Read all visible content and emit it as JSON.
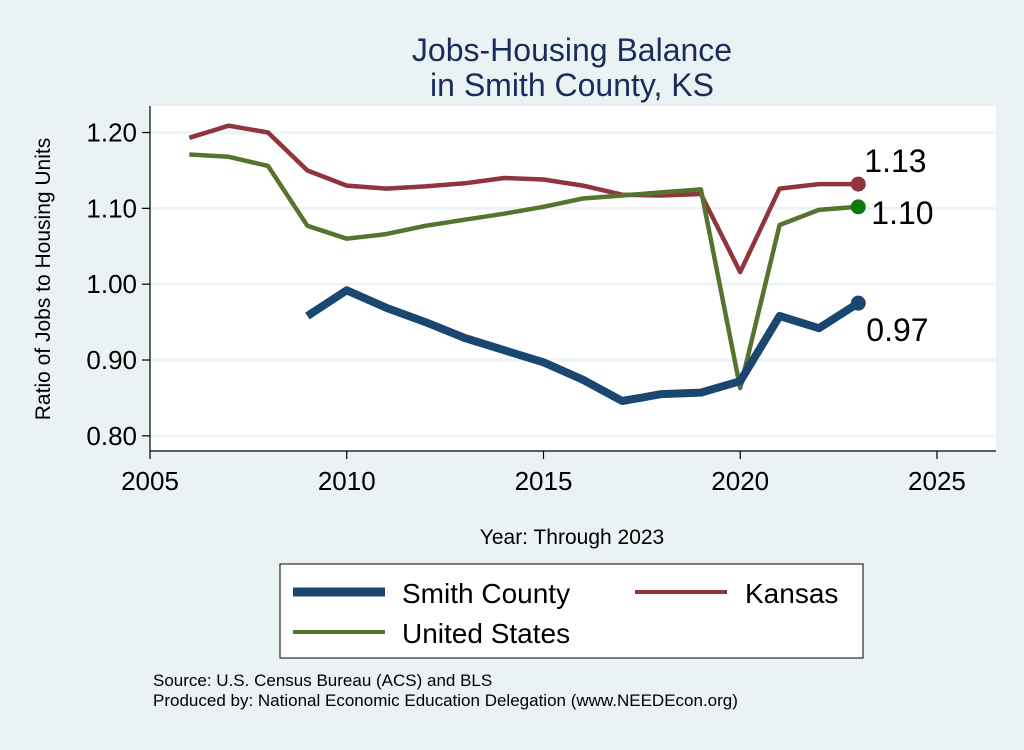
{
  "chart_data": {
    "type": "line",
    "title": [
      "Jobs-Housing Balance",
      "in Smith County, KS"
    ],
    "xlabel": "Year: Through 2023",
    "ylabel": "Ratio of Jobs to Housing Units",
    "xlim": [
      2005,
      2026.5
    ],
    "ylim": [
      0.78,
      1.235
    ],
    "xticks": [
      2005,
      2010,
      2015,
      2020,
      2025
    ],
    "xtick_labels": [
      "2005",
      "2010",
      "2015",
      "2020",
      "2025"
    ],
    "yticks": [
      0.8,
      0.9,
      1.0,
      1.1,
      1.2
    ],
    "ytick_labels": [
      "0.80",
      "0.90",
      "1.00",
      "1.10",
      "1.20"
    ],
    "grid": true,
    "series": [
      {
        "name": "Smith County",
        "color": "#1a476f",
        "x": [
          2009,
          2010,
          2011,
          2012,
          2013,
          2014,
          2015,
          2016,
          2017,
          2018,
          2019,
          2020,
          2021,
          2022,
          2023
        ],
        "values": [
          0.958,
          0.992,
          0.969,
          0.95,
          0.929,
          0.913,
          0.897,
          0.874,
          0.846,
          0.855,
          0.857,
          0.872,
          0.958,
          0.942,
          0.975
        ],
        "end_label": "0.97"
      },
      {
        "name": "Kansas",
        "color": "#90353b",
        "x": [
          2006,
          2007,
          2008,
          2009,
          2010,
          2011,
          2012,
          2013,
          2014,
          2015,
          2016,
          2017,
          2018,
          2019,
          2020,
          2021,
          2022,
          2023
        ],
        "values": [
          1.193,
          1.209,
          1.2,
          1.15,
          1.13,
          1.126,
          1.129,
          1.133,
          1.14,
          1.138,
          1.13,
          1.118,
          1.117,
          1.119,
          1.016,
          1.126,
          1.132,
          1.132
        ],
        "end_label": "1.13"
      },
      {
        "name": "United States",
        "color": "#55752f",
        "end_marker_color": "#0e7a0d",
        "x": [
          2006,
          2007,
          2008,
          2009,
          2010,
          2011,
          2012,
          2013,
          2014,
          2015,
          2016,
          2017,
          2018,
          2019,
          2020,
          2021,
          2022,
          2023
        ],
        "values": [
          1.171,
          1.168,
          1.156,
          1.077,
          1.06,
          1.066,
          1.077,
          1.085,
          1.093,
          1.102,
          1.113,
          1.117,
          1.121,
          1.125,
          0.863,
          1.078,
          1.098,
          1.102
        ],
        "end_label": "1.10"
      }
    ],
    "legend": [
      "Smith County",
      "Kansas",
      "United States"
    ],
    "legend_placement": "bottom"
  },
  "source": {
    "line1": "Source: U.S. Census Bureau (ACS) and BLS",
    "line2": "Produced by: National Economic Education Delegation (www.NEEDEcon.org)"
  }
}
